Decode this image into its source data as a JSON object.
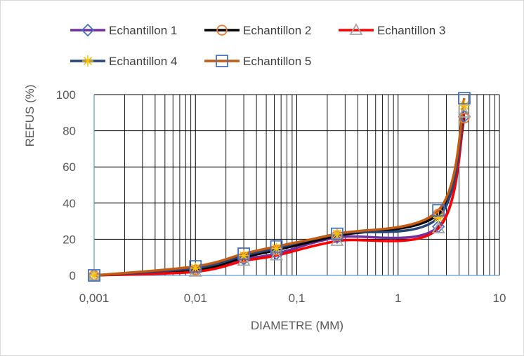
{
  "chart_data": {
    "type": "line",
    "xscale": "log",
    "xlabel": "DIAMETRE (MM)",
    "ylabel": "REFUS (%)",
    "xlim": [
      0.001,
      10
    ],
    "ylim": [
      0,
      100
    ],
    "xticks": [
      "0,001",
      "0,01",
      "0,1",
      "1",
      "10"
    ],
    "yticks": [
      "0",
      "20",
      "40",
      "60",
      "80",
      "100"
    ],
    "grid": "major and minor vertical, major horizontal",
    "legend_position": "top",
    "x": [
      0.001,
      0.01,
      0.03,
      0.063,
      0.25,
      2.5,
      4.5
    ],
    "series": [
      {
        "name": "Echantillon 1",
        "color": "#7030a0",
        "marker": "diamond-open",
        "marker_color": "#4472c4",
        "values": [
          0,
          3,
          9,
          12,
          21,
          27,
          88
        ]
      },
      {
        "name": "Echantillon 2",
        "color": "#000000",
        "marker": "circle-open",
        "marker_color": "#ed7d31",
        "values": [
          0,
          3,
          10,
          14,
          22,
          34,
          87
        ]
      },
      {
        "name": "Echantillon 3",
        "color": "#ff0000",
        "marker": "triangle-open",
        "marker_color": "#a5a5a5",
        "values": [
          0,
          2,
          8,
          11,
          19,
          26,
          90
        ]
      },
      {
        "name": "Echantillon 4",
        "color": "#264478",
        "marker": "star",
        "marker_color": "#ffc000",
        "values": [
          0,
          4,
          11,
          15,
          23,
          32,
          94
        ]
      },
      {
        "name": "Echantillon 5",
        "color": "#c55a11",
        "marker": "square-open",
        "marker_color": "#4472c4",
        "values": [
          0,
          5,
          12,
          16,
          23,
          36,
          98
        ]
      }
    ]
  }
}
